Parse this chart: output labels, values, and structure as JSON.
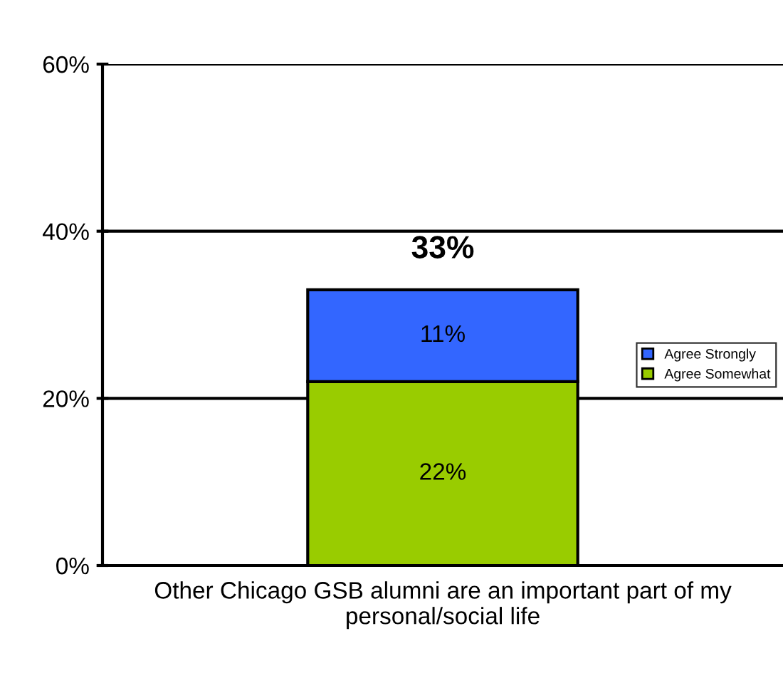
{
  "chart_data": {
    "type": "bar",
    "stacked": true,
    "categories": [
      "Other Chicago GSB alumni are an important part of my personal/social life"
    ],
    "series": [
      {
        "name": "Agree Somewhat",
        "color": "#99cc00",
        "values": [
          22
        ],
        "value_labels": [
          "22%"
        ]
      },
      {
        "name": "Agree Strongly",
        "color": "#3366ff",
        "values": [
          11
        ],
        "value_labels": [
          "11%"
        ]
      }
    ],
    "totals": [
      "33%"
    ],
    "ylim": [
      0,
      60
    ],
    "yticks": [
      {
        "value": 0,
        "label": "0%"
      },
      {
        "value": 20,
        "label": "20%"
      },
      {
        "value": 40,
        "label": "40%"
      },
      {
        "value": 60,
        "label": "60%"
      }
    ],
    "grid": "y",
    "legend": "right"
  }
}
